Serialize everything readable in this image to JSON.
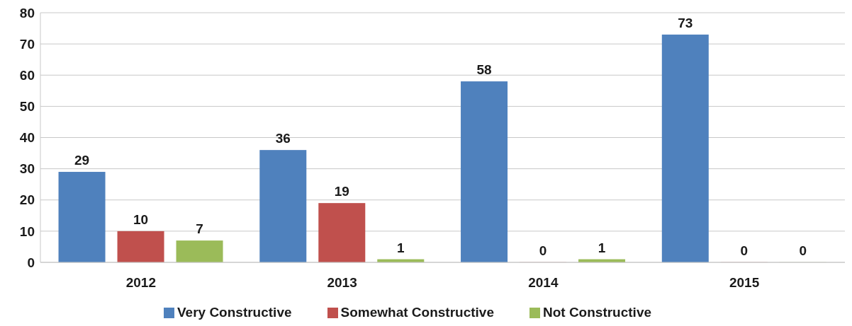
{
  "chart_data": {
    "type": "bar",
    "categories": [
      "2012",
      "2013",
      "2014",
      "2015"
    ],
    "series": [
      {
        "name": "Very Constructive",
        "color": "#4f81bd",
        "values": [
          29,
          36,
          58,
          73
        ]
      },
      {
        "name": "Somewhat Constructive",
        "color": "#c0504d",
        "values": [
          10,
          19,
          0,
          0
        ]
      },
      {
        "name": "Not Constructive",
        "color": "#9bbb59",
        "values": [
          7,
          1,
          1,
          0
        ]
      }
    ],
    "ylim": [
      0,
      80
    ],
    "yticks": [
      0,
      10,
      20,
      30,
      40,
      50,
      60,
      70,
      80
    ],
    "grid": "y",
    "legend": "bottom",
    "data_labels": true
  }
}
